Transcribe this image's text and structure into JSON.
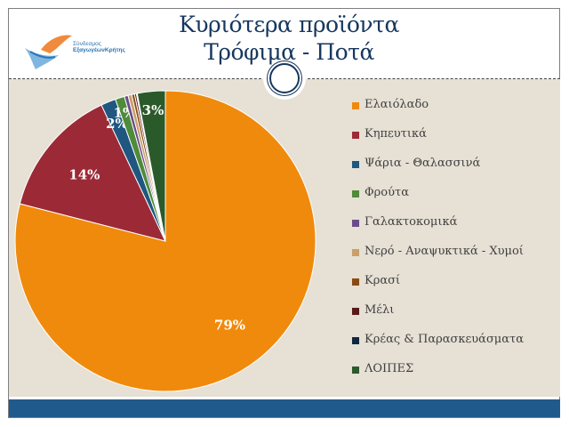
{
  "header": {
    "title_line1": "Κυριότερα προϊόντα",
    "title_line2": "Τρόφιμα - Ποτά",
    "logo_line1": "Σύνδεσμος",
    "logo_line2": "ΕξαγωγέωνΚρήτης"
  },
  "chart_data": {
    "type": "pie",
    "title": "",
    "legend_position": "right",
    "start_angle_deg": 0,
    "direction": "clockwise",
    "slices": [
      {
        "name": "Ελαιόλαδο",
        "value": 79,
        "label": "79%",
        "color": "#f08a0c"
      },
      {
        "name": "Κηπευτικά",
        "value": 14,
        "label": "14%",
        "color": "#9c2a36"
      },
      {
        "name": "Ψάρια - Θαλασσινά",
        "value": 1.6,
        "label": "2%",
        "color": "#1f5780"
      },
      {
        "name": "Φρούτα",
        "value": 1.0,
        "label": "1%",
        "color": "#4f8b3a"
      },
      {
        "name": "Γαλακτοκομικά",
        "value": 0.4,
        "label": "",
        "color": "#6a4b8a"
      },
      {
        "name": "Νερό - Αναψυκτικά - Χυμοί",
        "value": 0.4,
        "label": "",
        "color": "#c9a06a"
      },
      {
        "name": "Κρασί",
        "value": 0.3,
        "label": "",
        "color": "#8a4a12"
      },
      {
        "name": "Μέλι",
        "value": 0.2,
        "label": "",
        "color": "#5a1a1a"
      },
      {
        "name": "Κρέας & Παρασκευάσματα",
        "value": 0.1,
        "label": "",
        "color": "#10283f"
      },
      {
        "name": "ΛΟΙΠΕΣ",
        "value": 3,
        "label": "3%",
        "color": "#2b5a2a"
      }
    ]
  }
}
